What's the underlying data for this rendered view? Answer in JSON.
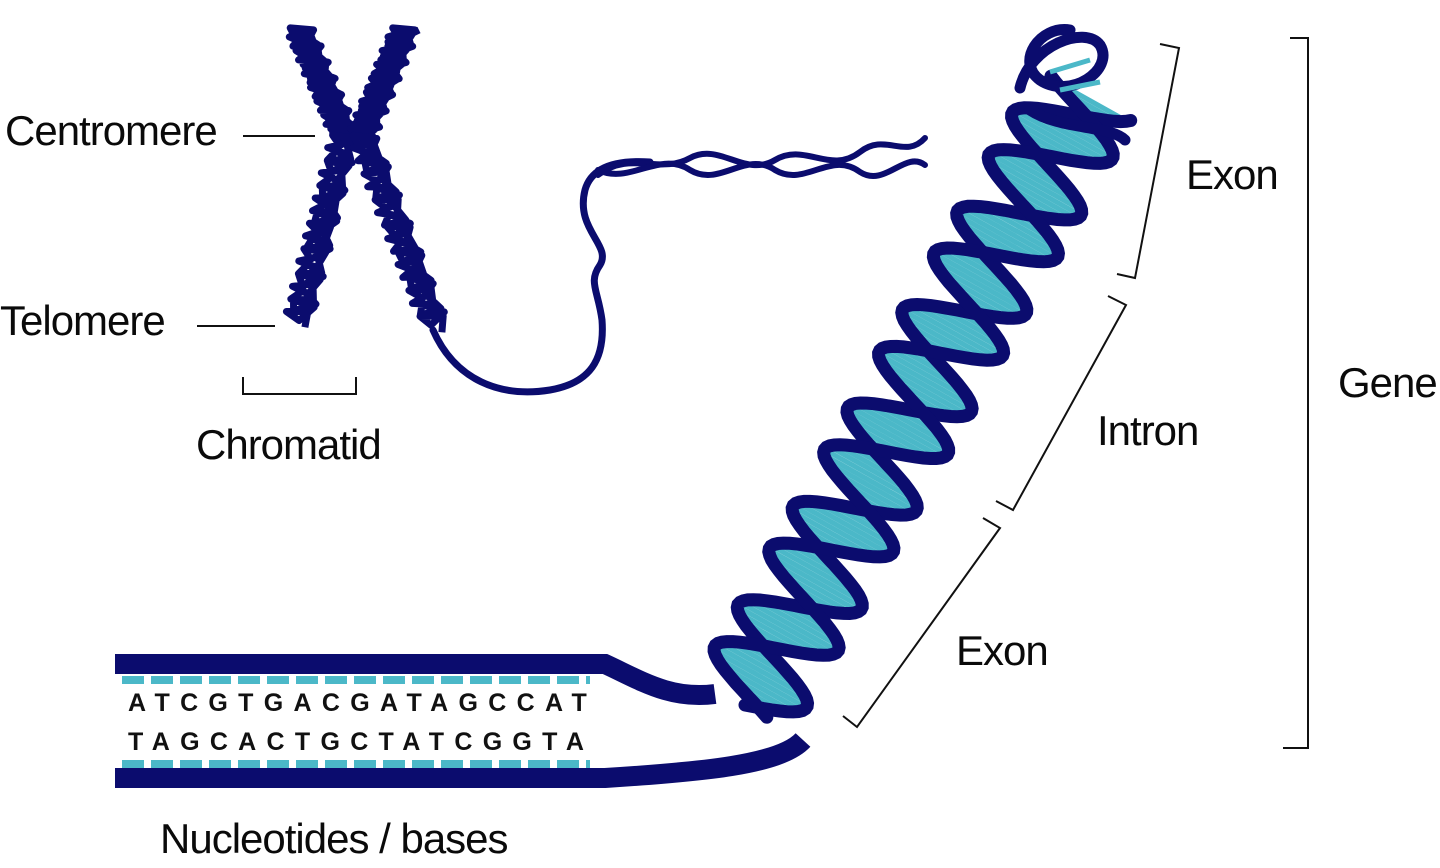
{
  "colors": {
    "backbone": "#0b0c6e",
    "base_pairs": "#4bb8c8",
    "text": "#0a0a0a"
  },
  "chromosome": {
    "centromere_label": "Centromere",
    "telomere_label": "Telomere",
    "chromatid_label": "Chromatid"
  },
  "gene": {
    "exon_label_top": "Exon",
    "intron_label": "Intron",
    "exon_label_bottom": "Exon",
    "gene_label": "Gene"
  },
  "sequence": {
    "strand_top": "ATCGTGACGATAGCCAT",
    "strand_bottom": "TAGCACTGCTATCGGTA",
    "caption": "Nucleotides / bases"
  }
}
